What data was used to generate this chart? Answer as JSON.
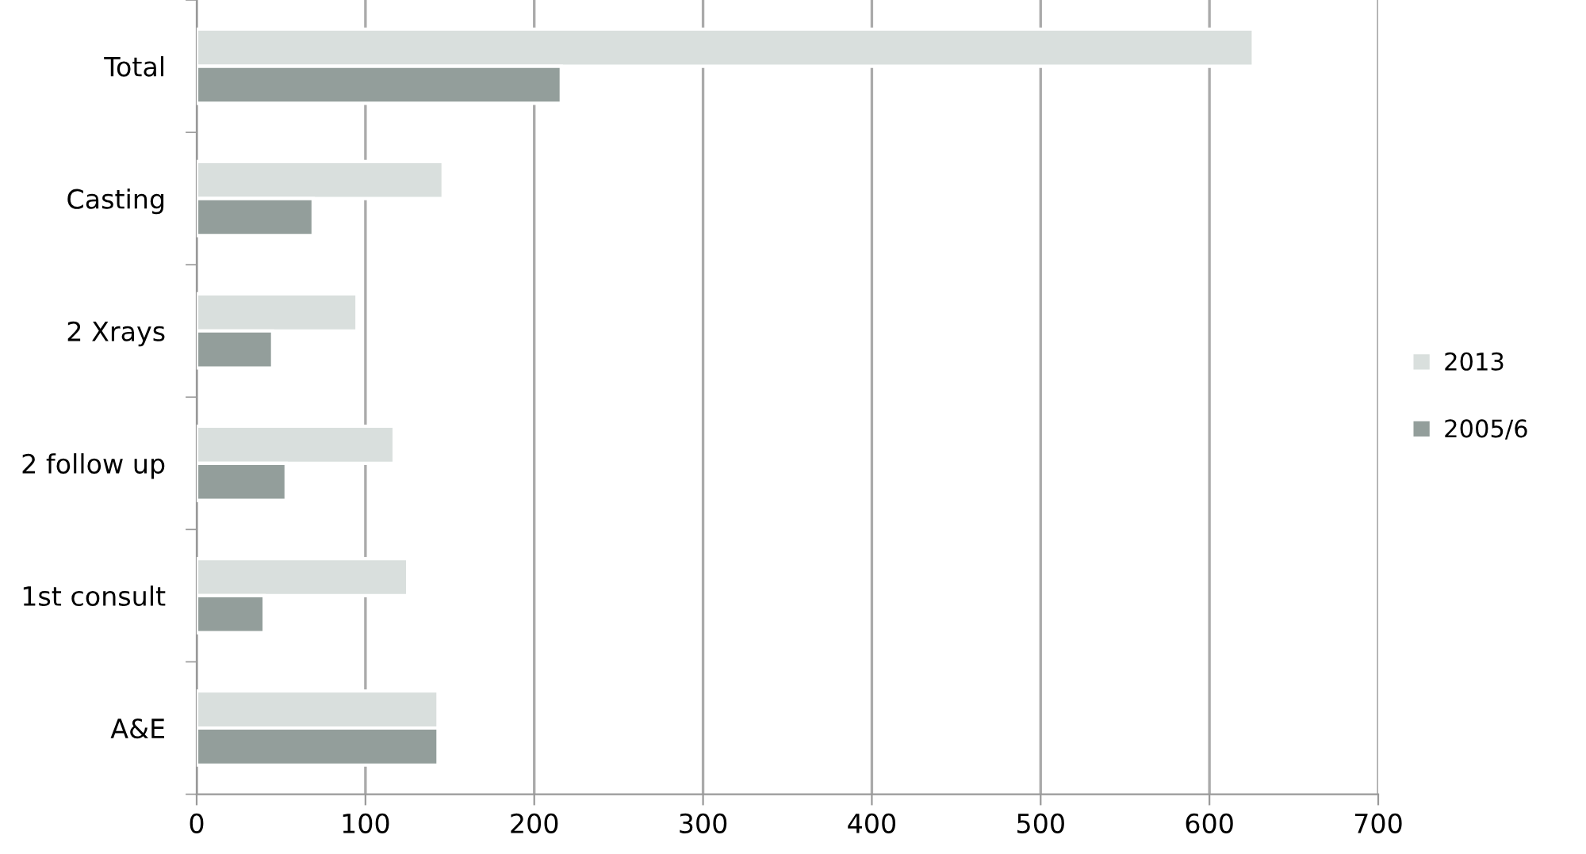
{
  "chart_data": {
    "type": "bar",
    "orientation": "horizontal",
    "categories": [
      "Total",
      "Casting",
      "2 Xrays",
      "2 follow up",
      "1st consult",
      "A&E"
    ],
    "series": [
      {
        "name": "2013",
        "color": "#d9dfdd",
        "values": [
          626,
          146,
          95,
          117,
          125,
          143
        ]
      },
      {
        "name": "2005/6",
        "color": "#939e9b",
        "values": [
          216,
          69,
          45,
          53,
          40,
          143
        ]
      }
    ],
    "xlim": [
      0,
      700
    ],
    "xticks": [
      0,
      100,
      200,
      300,
      400,
      500,
      600,
      700
    ],
    "grid": "x",
    "legend": "right"
  }
}
